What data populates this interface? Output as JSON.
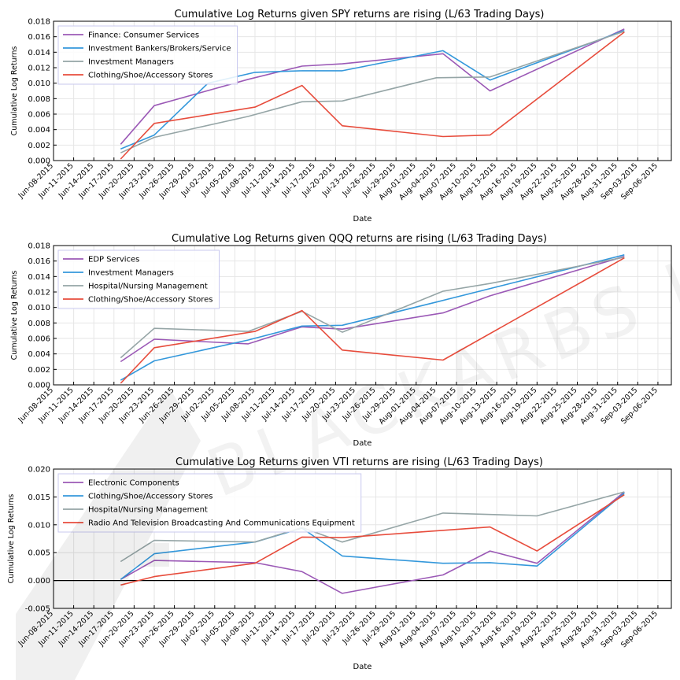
{
  "watermark": {
    "text": "BLACKARBS LLC"
  },
  "colors": {
    "purple": "#9b59b6",
    "blue": "#3498db",
    "gray": "#95a5a6",
    "red": "#e74c3c"
  },
  "chart_data": [
    {
      "type": "line",
      "title": "Cumulative Log Returns given SPY returns are rising (L/63 Trading Days)",
      "xlabel": "Date",
      "ylabel": "Cumulative Log Returns",
      "ylim": [
        0.0,
        0.018
      ],
      "yticks": [
        "0.000",
        "0.002",
        "0.004",
        "0.006",
        "0.008",
        "0.010",
        "0.012",
        "0.014",
        "0.016",
        "0.018"
      ],
      "grid": true,
      "legend": "top-left",
      "series": [
        {
          "name": "Finance: Consumer Services",
          "color": "#9b59b6",
          "points": [
            [
              "2015-06-18",
              0.0021
            ],
            [
              "2015-06-23",
              0.0071
            ],
            [
              "2015-07-07",
              0.0105
            ],
            [
              "2015-07-15",
              0.0122
            ],
            [
              "2015-07-21",
              0.0125
            ],
            [
              "2015-08-05",
              0.0138
            ],
            [
              "2015-08-12",
              0.009
            ],
            [
              "2015-09-01",
              0.017
            ]
          ]
        },
        {
          "name": "Investment Bankers/Brokers/Service",
          "color": "#3498db",
          "points": [
            [
              "2015-06-18",
              0.0015
            ],
            [
              "2015-06-23",
              0.0033
            ],
            [
              "2015-07-01",
              0.01
            ],
            [
              "2015-07-08",
              0.0114
            ],
            [
              "2015-07-15",
              0.0116
            ],
            [
              "2015-07-21",
              0.0116
            ],
            [
              "2015-08-05",
              0.0142
            ],
            [
              "2015-08-12",
              0.0104
            ],
            [
              "2015-09-01",
              0.0168
            ]
          ]
        },
        {
          "name": "Investment Managers",
          "color": "#95a5a6",
          "points": [
            [
              "2015-06-18",
              0.001
            ],
            [
              "2015-06-23",
              0.003
            ],
            [
              "2015-07-07",
              0.0057
            ],
            [
              "2015-07-15",
              0.0076
            ],
            [
              "2015-07-21",
              0.0077
            ],
            [
              "2015-08-04",
              0.0107
            ],
            [
              "2015-08-12",
              0.0108
            ],
            [
              "2015-09-01",
              0.0167
            ]
          ]
        },
        {
          "name": "Clothing/Shoe/Accessory Stores",
          "color": "#e74c3c",
          "points": [
            [
              "2015-06-18",
              0.0002
            ],
            [
              "2015-06-23",
              0.0048
            ],
            [
              "2015-07-08",
              0.0069
            ],
            [
              "2015-07-15",
              0.0097
            ],
            [
              "2015-07-21",
              0.0045
            ],
            [
              "2015-08-05",
              0.0031
            ],
            [
              "2015-08-12",
              0.0033
            ],
            [
              "2015-09-01",
              0.0166
            ]
          ]
        }
      ]
    },
    {
      "type": "line",
      "title": "Cumulative Log Returns given QQQ returns are rising (L/63 Trading Days)",
      "xlabel": "Date",
      "ylabel": "Cumulative Log Returns",
      "ylim": [
        0.0,
        0.018
      ],
      "yticks": [
        "0.000",
        "0.002",
        "0.004",
        "0.006",
        "0.008",
        "0.010",
        "0.012",
        "0.014",
        "0.016",
        "0.018"
      ],
      "grid": true,
      "legend": "top-left",
      "series": [
        {
          "name": "EDP Services",
          "color": "#9b59b6",
          "points": [
            [
              "2015-06-18",
              0.003
            ],
            [
              "2015-06-23",
              0.0059
            ],
            [
              "2015-07-07",
              0.0053
            ],
            [
              "2015-07-15",
              0.0075
            ],
            [
              "2015-07-21",
              0.0072
            ],
            [
              "2015-08-05",
              0.0093
            ],
            [
              "2015-08-12",
              0.0115
            ],
            [
              "2015-09-01",
              0.0166
            ]
          ]
        },
        {
          "name": "Investment Managers",
          "color": "#3498db",
          "points": [
            [
              "2015-06-18",
              0.0006
            ],
            [
              "2015-06-23",
              0.0031
            ],
            [
              "2015-07-07",
              0.0058
            ],
            [
              "2015-07-15",
              0.0076
            ],
            [
              "2015-07-21",
              0.0077
            ],
            [
              "2015-08-04",
              0.0107
            ],
            [
              "2015-09-01",
              0.0168
            ]
          ]
        },
        {
          "name": "Hospital/Nursing Management",
          "color": "#95a5a6",
          "points": [
            [
              "2015-06-18",
              0.0035
            ],
            [
              "2015-06-23",
              0.0073
            ],
            [
              "2015-07-07",
              0.0069
            ],
            [
              "2015-07-15",
              0.0095
            ],
            [
              "2015-07-21",
              0.0068
            ],
            [
              "2015-08-05",
              0.0121
            ],
            [
              "2015-08-12",
              0.0131
            ],
            [
              "2015-09-01",
              0.0165
            ]
          ]
        },
        {
          "name": "Clothing/Shoe/Accessory Stores",
          "color": "#e74c3c",
          "points": [
            [
              "2015-06-18",
              0.0002
            ],
            [
              "2015-06-23",
              0.0048
            ],
            [
              "2015-07-08",
              0.0069
            ],
            [
              "2015-07-15",
              0.0096
            ],
            [
              "2015-07-21",
              0.0045
            ],
            [
              "2015-08-05",
              0.0032
            ],
            [
              "2015-09-01",
              0.0164
            ]
          ]
        }
      ]
    },
    {
      "type": "line",
      "title": "Cumulative Log Returns given VTI returns are rising (L/63 Trading Days)",
      "xlabel": "Date",
      "ylabel": "Cumulative Log Returns",
      "ylim": [
        -0.005,
        0.02
      ],
      "yticks": [
        "-0.005",
        "0.000",
        "0.005",
        "0.010",
        "0.015",
        "0.020"
      ],
      "zero_line": true,
      "grid": true,
      "legend": "top-left",
      "series": [
        {
          "name": "Electronic Components",
          "color": "#9b59b6",
          "points": [
            [
              "2015-06-18",
              0.0002
            ],
            [
              "2015-06-23",
              0.0036
            ],
            [
              "2015-07-08",
              0.0032
            ],
            [
              "2015-07-15",
              0.0016
            ],
            [
              "2015-07-21",
              -0.0023
            ],
            [
              "2015-08-05",
              0.001
            ],
            [
              "2015-08-12",
              0.0053
            ],
            [
              "2015-08-19",
              0.0031
            ],
            [
              "2015-09-01",
              0.0159
            ]
          ]
        },
        {
          "name": "Clothing/Shoe/Accessory Stores",
          "color": "#3498db",
          "points": [
            [
              "2015-06-18",
              0.0002
            ],
            [
              "2015-06-23",
              0.0048
            ],
            [
              "2015-07-08",
              0.0069
            ],
            [
              "2015-07-15",
              0.0094
            ],
            [
              "2015-07-21",
              0.0044
            ],
            [
              "2015-08-05",
              0.0031
            ],
            [
              "2015-08-12",
              0.0032
            ],
            [
              "2015-08-19",
              0.0026
            ],
            [
              "2015-09-01",
              0.0157
            ]
          ]
        },
        {
          "name": "Hospital/Nursing Management",
          "color": "#95a5a6",
          "points": [
            [
              "2015-06-18",
              0.0034
            ],
            [
              "2015-06-23",
              0.0072
            ],
            [
              "2015-07-08",
              0.0069
            ],
            [
              "2015-07-15",
              0.0095
            ],
            [
              "2015-07-21",
              0.0069
            ],
            [
              "2015-08-05",
              0.0121
            ],
            [
              "2015-08-19",
              0.0116
            ],
            [
              "2015-09-01",
              0.0159
            ]
          ]
        },
        {
          "name": "Radio And Television Broadcasting And Communications Equipment",
          "color": "#e74c3c",
          "points": [
            [
              "2015-06-18",
              -0.0008
            ],
            [
              "2015-06-23",
              0.0007
            ],
            [
              "2015-07-08",
              0.0031
            ],
            [
              "2015-07-15",
              0.0078
            ],
            [
              "2015-07-21",
              0.0077
            ],
            [
              "2015-08-12",
              0.0096
            ],
            [
              "2015-08-19",
              0.0053
            ],
            [
              "2015-09-01",
              0.0154
            ]
          ]
        }
      ]
    }
  ],
  "xticks": [
    "Jun-08-2015",
    "Jun-11-2015",
    "Jun-14-2015",
    "Jun-17-2015",
    "Jun-20-2015",
    "Jun-23-2015",
    "Jun-26-2015",
    "Jun-29-2015",
    "Jul-02-2015",
    "Jul-05-2015",
    "Jul-08-2015",
    "Jul-11-2015",
    "Jul-14-2015",
    "Jul-17-2015",
    "Jul-20-2015",
    "Jul-23-2015",
    "Jul-26-2015",
    "Jul-29-2015",
    "Aug-01-2015",
    "Aug-04-2015",
    "Aug-07-2015",
    "Aug-10-2015",
    "Aug-13-2015",
    "Aug-16-2015",
    "Aug-19-2015",
    "Aug-22-2015",
    "Aug-25-2015",
    "Aug-28-2015",
    "Aug-31-2015",
    "Sep-03-2015",
    "Sep-06-2015"
  ],
  "xlim": [
    "2015-06-08",
    "2015-09-08"
  ]
}
